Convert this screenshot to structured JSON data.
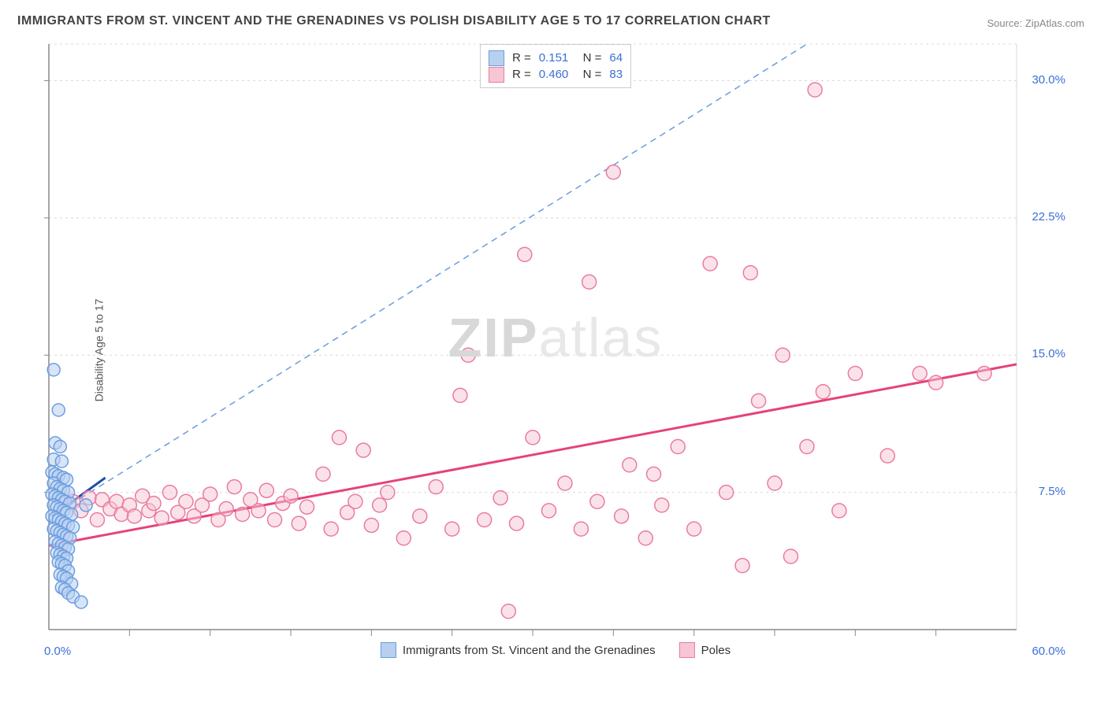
{
  "title": "IMMIGRANTS FROM ST. VINCENT AND THE GRENADINES VS POLISH DISABILITY AGE 5 TO 17 CORRELATION CHART",
  "source": "Source: ZipAtlas.com",
  "ylabel": "Disability Age 5 to 17",
  "watermark_a": "ZIP",
  "watermark_b": "atlas",
  "chart": {
    "type": "scatter",
    "background_color": "#ffffff",
    "grid_color": "#d9d9d9",
    "axis_color": "#888888",
    "xlim": [
      0,
      60
    ],
    "ylim": [
      0,
      32
    ],
    "ytick_values": [
      7.5,
      15.0,
      22.5,
      30.0
    ],
    "ytick_labels": [
      "7.5%",
      "15.0%",
      "22.5%",
      "30.0%"
    ],
    "xtick_minor_step": 5,
    "xtick_left_label": "0.0%",
    "xtick_right_label": "60.0%",
    "series": [
      {
        "name": "Immigrants from St. Vincent and the Grenadines",
        "color_fill": "#b8d0f0",
        "color_stroke": "#6a9de0",
        "marker_r": 8,
        "fill_opacity": 0.55,
        "R": "0.151",
        "N": "64",
        "trend_solid": {
          "x1": 0.2,
          "y1": 6.2,
          "x2": 3.5,
          "y2": 8.3,
          "stroke": "#1f4fa8",
          "width": 3
        },
        "trend_dashed": {
          "x1": 0.2,
          "y1": 6.2,
          "x2": 47,
          "y2": 32,
          "stroke": "#6a9de0",
          "width": 1.5
        },
        "points": [
          [
            0.3,
            14.2
          ],
          [
            0.6,
            12.0
          ],
          [
            0.4,
            10.2
          ],
          [
            0.7,
            10.0
          ],
          [
            0.3,
            9.3
          ],
          [
            0.8,
            9.2
          ],
          [
            0.2,
            8.6
          ],
          [
            0.4,
            8.5
          ],
          [
            0.6,
            8.4
          ],
          [
            0.9,
            8.3
          ],
          [
            1.1,
            8.2
          ],
          [
            0.3,
            8.0
          ],
          [
            0.5,
            7.8
          ],
          [
            0.7,
            7.7
          ],
          [
            0.9,
            7.6
          ],
          [
            1.2,
            7.5
          ],
          [
            0.2,
            7.4
          ],
          [
            0.4,
            7.3
          ],
          [
            0.6,
            7.2
          ],
          [
            0.8,
            7.1
          ],
          [
            1.0,
            7.0
          ],
          [
            1.3,
            6.9
          ],
          [
            0.3,
            6.8
          ],
          [
            0.5,
            6.7
          ],
          [
            0.7,
            6.6
          ],
          [
            0.9,
            6.5
          ],
          [
            1.1,
            6.4
          ],
          [
            1.4,
            6.3
          ],
          [
            0.2,
            6.2
          ],
          [
            0.4,
            6.1
          ],
          [
            0.6,
            6.0
          ],
          [
            0.8,
            5.9
          ],
          [
            1.0,
            5.8
          ],
          [
            1.2,
            5.7
          ],
          [
            1.5,
            5.6
          ],
          [
            0.3,
            5.5
          ],
          [
            0.5,
            5.4
          ],
          [
            0.7,
            5.3
          ],
          [
            0.9,
            5.2
          ],
          [
            1.1,
            5.1
          ],
          [
            1.3,
            5.0
          ],
          [
            0.4,
            4.8
          ],
          [
            0.6,
            4.7
          ],
          [
            0.8,
            4.6
          ],
          [
            1.0,
            4.5
          ],
          [
            1.2,
            4.4
          ],
          [
            0.5,
            4.2
          ],
          [
            0.7,
            4.1
          ],
          [
            0.9,
            4.0
          ],
          [
            1.1,
            3.9
          ],
          [
            0.6,
            3.7
          ],
          [
            0.8,
            3.6
          ],
          [
            1.0,
            3.5
          ],
          [
            1.2,
            3.2
          ],
          [
            0.7,
            3.0
          ],
          [
            0.9,
            2.9
          ],
          [
            1.1,
            2.8
          ],
          [
            1.4,
            2.5
          ],
          [
            0.8,
            2.3
          ],
          [
            1.0,
            2.2
          ],
          [
            1.2,
            2.0
          ],
          [
            1.5,
            1.8
          ],
          [
            2.0,
            1.5
          ],
          [
            2.3,
            6.8
          ]
        ]
      },
      {
        "name": "Poles",
        "color_fill": "#f7c6d4",
        "color_stroke": "#e97ba0",
        "marker_r": 9,
        "fill_opacity": 0.5,
        "R": "0.460",
        "N": "83",
        "trend_solid": {
          "x1": 0,
          "y1": 4.6,
          "x2": 60,
          "y2": 14.5,
          "stroke": "#e6427a",
          "width": 3
        },
        "points": [
          [
            1.5,
            7.0
          ],
          [
            2.0,
            6.5
          ],
          [
            2.5,
            7.2
          ],
          [
            3.0,
            6.0
          ],
          [
            3.3,
            7.1
          ],
          [
            3.8,
            6.6
          ],
          [
            4.2,
            7.0
          ],
          [
            4.5,
            6.3
          ],
          [
            5.0,
            6.8
          ],
          [
            5.3,
            6.2
          ],
          [
            5.8,
            7.3
          ],
          [
            6.2,
            6.5
          ],
          [
            6.5,
            6.9
          ],
          [
            7.0,
            6.1
          ],
          [
            7.5,
            7.5
          ],
          [
            8.0,
            6.4
          ],
          [
            8.5,
            7.0
          ],
          [
            9.0,
            6.2
          ],
          [
            9.5,
            6.8
          ],
          [
            10.0,
            7.4
          ],
          [
            10.5,
            6.0
          ],
          [
            11.0,
            6.6
          ],
          [
            11.5,
            7.8
          ],
          [
            12.0,
            6.3
          ],
          [
            12.5,
            7.1
          ],
          [
            13.0,
            6.5
          ],
          [
            13.5,
            7.6
          ],
          [
            14.0,
            6.0
          ],
          [
            14.5,
            6.9
          ],
          [
            15.0,
            7.3
          ],
          [
            15.5,
            5.8
          ],
          [
            16.0,
            6.7
          ],
          [
            17.0,
            8.5
          ],
          [
            17.5,
            5.5
          ],
          [
            18.0,
            10.5
          ],
          [
            18.5,
            6.4
          ],
          [
            19.0,
            7.0
          ],
          [
            19.5,
            9.8
          ],
          [
            20.0,
            5.7
          ],
          [
            20.5,
            6.8
          ],
          [
            21.0,
            7.5
          ],
          [
            22.0,
            5.0
          ],
          [
            23.0,
            6.2
          ],
          [
            24.0,
            7.8
          ],
          [
            25.0,
            5.5
          ],
          [
            25.5,
            12.8
          ],
          [
            26.0,
            15.0
          ],
          [
            27.0,
            6.0
          ],
          [
            28.0,
            7.2
          ],
          [
            28.5,
            1.0
          ],
          [
            29.0,
            5.8
          ],
          [
            29.5,
            20.5
          ],
          [
            30.0,
            10.5
          ],
          [
            31.0,
            6.5
          ],
          [
            32.0,
            8.0
          ],
          [
            33.0,
            5.5
          ],
          [
            33.5,
            19.0
          ],
          [
            34.0,
            7.0
          ],
          [
            35.0,
            25.0
          ],
          [
            35.5,
            6.2
          ],
          [
            36.0,
            9.0
          ],
          [
            37.0,
            5.0
          ],
          [
            37.5,
            8.5
          ],
          [
            38.0,
            6.8
          ],
          [
            39.0,
            10.0
          ],
          [
            40.0,
            5.5
          ],
          [
            41.0,
            20.0
          ],
          [
            42.0,
            7.5
          ],
          [
            43.0,
            3.5
          ],
          [
            43.5,
            19.5
          ],
          [
            44.0,
            12.5
          ],
          [
            45.0,
            8.0
          ],
          [
            45.5,
            15.0
          ],
          [
            46.0,
            4.0
          ],
          [
            47.0,
            10.0
          ],
          [
            48.0,
            13.0
          ],
          [
            49.0,
            6.5
          ],
          [
            50.0,
            14.0
          ],
          [
            52.0,
            9.5
          ],
          [
            54.0,
            14.0
          ],
          [
            55.0,
            13.5
          ],
          [
            58.0,
            14.0
          ],
          [
            47.5,
            29.5
          ]
        ]
      }
    ],
    "bottom_legend": [
      {
        "label": "Immigrants from St. Vincent and the Grenadines",
        "fill": "#b8d0f0",
        "stroke": "#6a9de0"
      },
      {
        "label": "Poles",
        "fill": "#f7c6d4",
        "stroke": "#e97ba0"
      }
    ]
  }
}
